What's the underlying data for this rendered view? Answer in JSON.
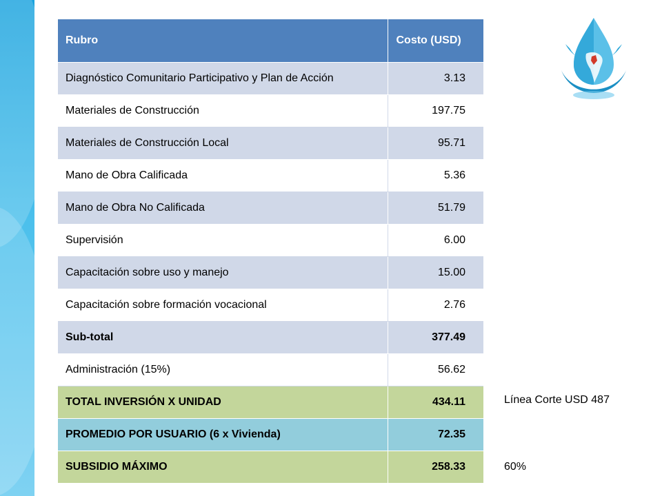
{
  "table": {
    "header": {
      "item": "Rubro",
      "cost": "Costo (USD)"
    },
    "rows": [
      {
        "item": "Diagnóstico Comunitario Participativo y Plan de Acción",
        "cost": "3.13"
      },
      {
        "item": "Materiales de Construcción",
        "cost": "197.75"
      },
      {
        "item": "Materiales de Construcción Local",
        "cost": "95.71"
      },
      {
        "item": "Mano de Obra Calificada",
        "cost": "5.36"
      },
      {
        "item": "Mano de Obra No Calificada",
        "cost": "51.79"
      },
      {
        "item": "Supervisión",
        "cost": "6.00"
      },
      {
        "item": "Capacitación sobre uso y manejo",
        "cost": "15.00"
      },
      {
        "item": "Capacitación sobre formación vocacional",
        "cost": "2.76"
      },
      {
        "item": "Sub-total",
        "cost": "377.49"
      },
      {
        "item": "Administración (15%)",
        "cost": "56.62"
      },
      {
        "item": "TOTAL INVERSIÓN X UNIDAD",
        "cost": "434.11"
      },
      {
        "item": "PROMEDIO POR USUARIO (6 x Vivienda)",
        "cost": "72.35"
      },
      {
        "item": "SUBSIDIO MÁXIMO",
        "cost": "258.33"
      }
    ]
  },
  "notes": {
    "cutoff": "Línea Corte USD 487",
    "percent": "60%"
  },
  "colors": {
    "header": "#4f81bd",
    "row_alt": "#d0d8e8",
    "total_green": "#c3d69b",
    "average_blue": "#92cddc",
    "side_band": "#1aa3de"
  },
  "icons": {
    "logo": "water-drop-south-america-logo-icon"
  }
}
